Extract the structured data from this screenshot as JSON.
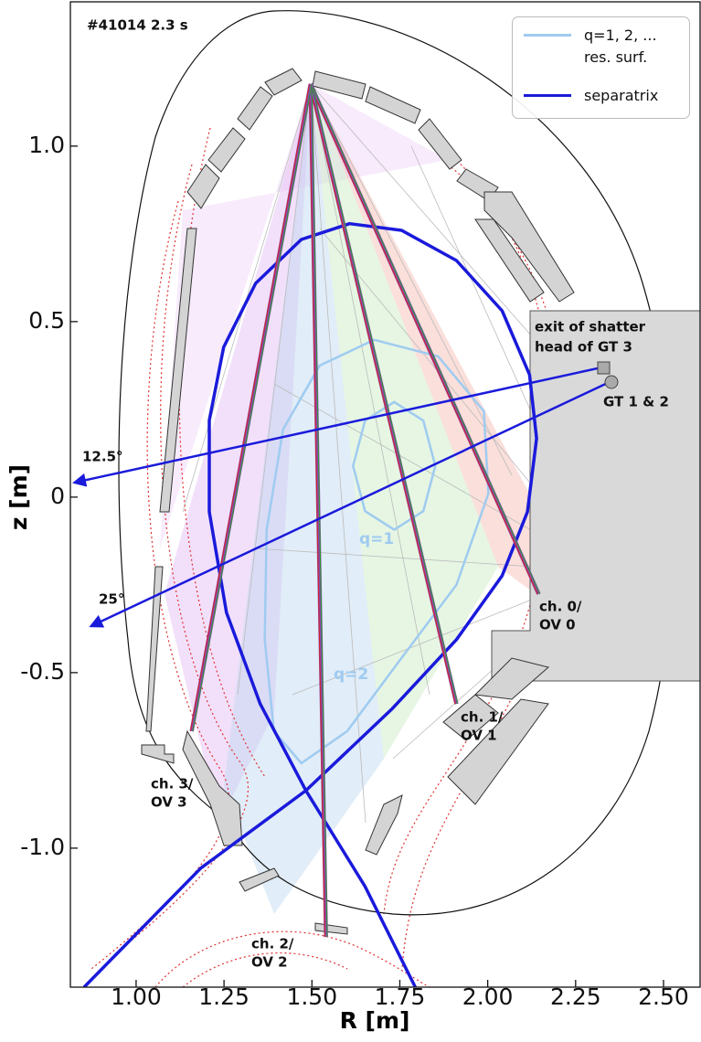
{
  "chart_data": {
    "type": "line",
    "title": "#41014 2.3 s",
    "xlabel": "R [m]",
    "ylabel": "z [m]",
    "xlim": [
      0.813,
      2.604
    ],
    "ylim": [
      -1.396,
      1.411
    ],
    "xticks": [
      {
        "value": 1,
        "label": "1.00"
      },
      1.25,
      {
        "value": 1.5,
        "label": "1.50"
      },
      1.75,
      {
        "value": 2,
        "label": "2.00"
      },
      2.25,
      {
        "value": 2.5,
        "label": "2.50"
      }
    ],
    "yticks": [
      {
        "value": -1,
        "label": "-1.0"
      },
      -0.5,
      0,
      0.5,
      {
        "value": 1,
        "label": "1.0"
      }
    ],
    "grid": false,
    "series": [
      {
        "name": "q=1, 2, ... res. surf.",
        "color": "#9fcbf0",
        "x": [
          1.851,
          1.817,
          1.734,
          1.651,
          1.617,
          1.651,
          1.734,
          1.817,
          1.851,
          null,
          1.677,
          1.859,
          1.989,
          2.002,
          1.911,
          1.755,
          1.6,
          1.47,
          1.392,
          1.366,
          1.371,
          1.418,
          1.522,
          1.677
        ],
        "y": [
          0.089,
          0.218,
          0.271,
          0.218,
          0.089,
          -0.04,
          -0.093,
          -0.04,
          0.089,
          null,
          0.448,
          0.401,
          0.245,
          0.01,
          -0.25,
          -0.458,
          -0.667,
          -0.758,
          -0.667,
          -0.406,
          -0.094,
          0.193,
          0.375,
          0.448
        ]
      },
      {
        "name": "separatrix",
        "color": "#1a1adb",
        "x": [
          1.794,
          1.651,
          1.483,
          1.353,
          1.257,
          1.208,
          1.208,
          1.249,
          1.34,
          1.47,
          1.607,
          1.755,
          1.911,
          2.041,
          2.119,
          2.139,
          2.113,
          2.041,
          1.911,
          1.729,
          1.483,
          1.184,
          0.852
        ],
        "y": [
          -1.396,
          -1.109,
          -0.836,
          -0.589,
          -0.329,
          -0.042,
          0.219,
          0.427,
          0.609,
          0.734,
          0.779,
          0.76,
          0.674,
          0.531,
          0.349,
          0.167,
          -0.042,
          -0.224,
          -0.406,
          -0.602,
          -0.836,
          -1.057,
          -1.396
        ]
      }
    ],
    "chords": {
      "color": "#8a4ab0",
      "stripe_colors": [
        "#d62020",
        "#2a9a2a"
      ],
      "items": [
        {
          "label": [
            "ch. 0/",
            "OV 0"
          ],
          "x": [
            1.496,
            2.145
          ],
          "y": [
            1.177,
            -0.276
          ]
        },
        {
          "label": [
            "ch. 1/",
            "OV 1"
          ],
          "x": [
            1.496,
            1.911
          ],
          "y": [
            1.177,
            -0.589
          ]
        },
        {
          "label": [
            "ch. 2/",
            "OV 2"
          ],
          "x": [
            1.496,
            1.54
          ],
          "y": [
            1.177,
            -1.253
          ]
        },
        {
          "label": [
            "ch. 3/",
            "OV 3"
          ],
          "x": [
            1.496,
            1.158
          ],
          "y": [
            1.177,
            -0.667
          ]
        }
      ]
    },
    "injection": {
      "color": "#1a1adb",
      "items": [
        {
          "label": "12.5°",
          "x": [
            2.326,
            0.826
          ],
          "y": [
            0.37,
            0.042
          ]
        },
        {
          "label": "25°",
          "x": [
            2.347,
            0.873
          ],
          "y": [
            0.328,
            -0.367
          ]
        }
      ]
    },
    "annotations": [
      "exit of shatter",
      "head of GT 3",
      "GT 1 & 2",
      "q=1",
      "q=2"
    ]
  }
}
